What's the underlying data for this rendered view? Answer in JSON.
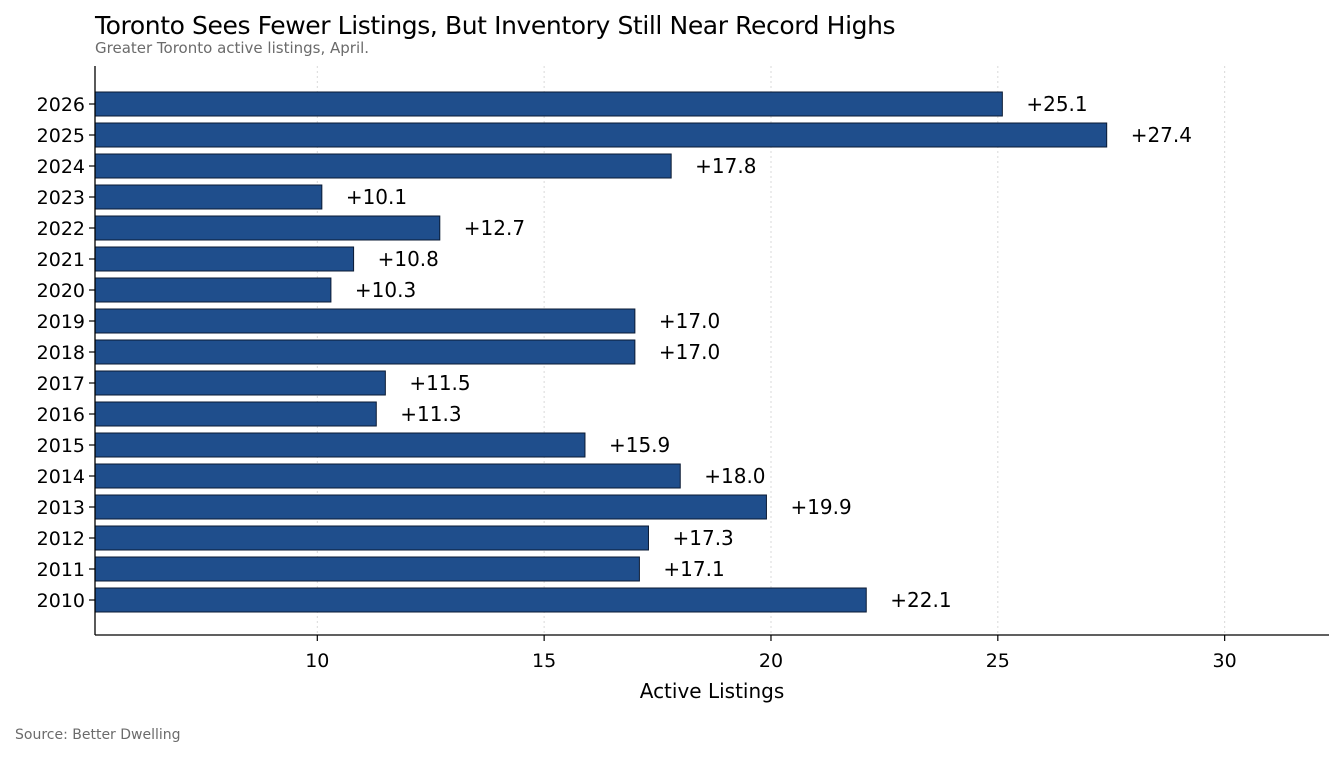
{
  "title": "Toronto Sees Fewer Listings, But Inventory Still Near Record Highs",
  "subtitle": "Greater Toronto active listings, April.",
  "source": "Source: Better Dwelling",
  "colors": {
    "bar_fill": "#1f4e8c",
    "bar_stroke": "#0a1a33",
    "grid": "#d9d9d9",
    "axis": "#000000",
    "muted_text": "#6b6b6b"
  },
  "chart_data": {
    "type": "bar",
    "orientation": "horizontal",
    "title": "Toronto Sees Fewer Listings, But Inventory Still Near Record Highs",
    "subtitle": "Greater Toronto active listings, April.",
    "xlabel": "Active Listings",
    "ylabel": "",
    "categories": [
      "2026",
      "2025",
      "2024",
      "2023",
      "2022",
      "2021",
      "2020",
      "2019",
      "2018",
      "2017",
      "2016",
      "2015",
      "2014",
      "2013",
      "2012",
      "2011",
      "2010"
    ],
    "values": [
      25.1,
      27.4,
      17.8,
      10.1,
      12.7,
      10.8,
      10.3,
      17.0,
      17.0,
      11.5,
      11.3,
      15.9,
      18.0,
      19.9,
      17.3,
      17.1,
      22.1
    ],
    "data_labels": [
      "+25.1",
      "+27.4",
      "+17.8",
      "+10.1",
      "+12.7",
      "+10.8",
      "+10.3",
      "+17.0",
      "+17.0",
      "+11.5",
      "+11.3",
      "+15.9",
      "+18.0",
      "+19.9",
      "+17.3",
      "+17.1",
      "+22.1"
    ],
    "xticks": [
      10,
      15,
      20,
      25,
      30
    ],
    "xtick_labels": [
      "10",
      "15",
      "20",
      "25",
      "30"
    ],
    "xlim": [
      5.1,
      32.3
    ],
    "grid": "vertical dotted",
    "legend": "none"
  }
}
